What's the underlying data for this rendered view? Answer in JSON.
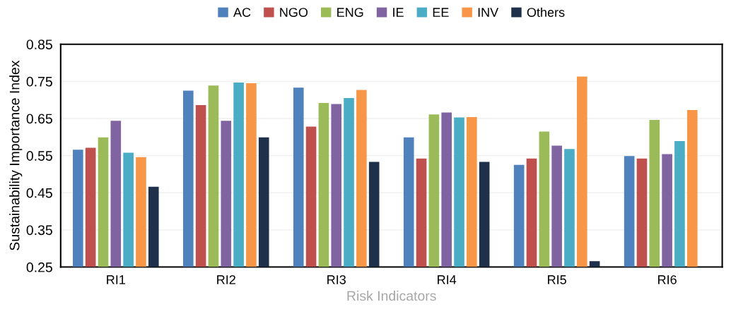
{
  "chart_data": {
    "type": "bar",
    "xlabel": "Risk Indicators",
    "ylabel": "Sustainability Importance Index",
    "categories": [
      "RI1",
      "RI2",
      "RI3",
      "RI4",
      "RI5",
      "RI6"
    ],
    "series": [
      {
        "name": "AC",
        "color": "#4f81bd",
        "values": [
          0.566,
          0.725,
          0.733,
          0.599,
          0.525,
          0.549
        ]
      },
      {
        "name": "NGO",
        "color": "#c0504d",
        "values": [
          0.571,
          0.686,
          0.628,
          0.542,
          0.542,
          0.542
        ]
      },
      {
        "name": "ENG",
        "color": "#9bbb59",
        "values": [
          0.599,
          0.739,
          0.692,
          0.661,
          0.615,
          0.646
        ]
      },
      {
        "name": "IE",
        "color": "#8064a2",
        "values": [
          0.644,
          0.644,
          0.689,
          0.666,
          0.577,
          0.554
        ]
      },
      {
        "name": "EE",
        "color": "#4bacc6",
        "values": [
          0.558,
          0.747,
          0.705,
          0.653,
          0.568,
          0.589
        ]
      },
      {
        "name": "INV",
        "color": "#f79646",
        "values": [
          0.546,
          0.745,
          0.727,
          0.654,
          0.763,
          0.673
        ]
      },
      {
        "name": "Others",
        "color": "#1f314a",
        "values": [
          0.466,
          0.599,
          0.533,
          0.533,
          0.266,
          0.25
        ]
      }
    ],
    "ylim": [
      0.25,
      0.85
    ],
    "yticks": [
      0.25,
      0.35,
      0.45,
      0.55,
      0.65,
      0.75,
      0.85
    ],
    "grid": "y",
    "legend": "top"
  }
}
